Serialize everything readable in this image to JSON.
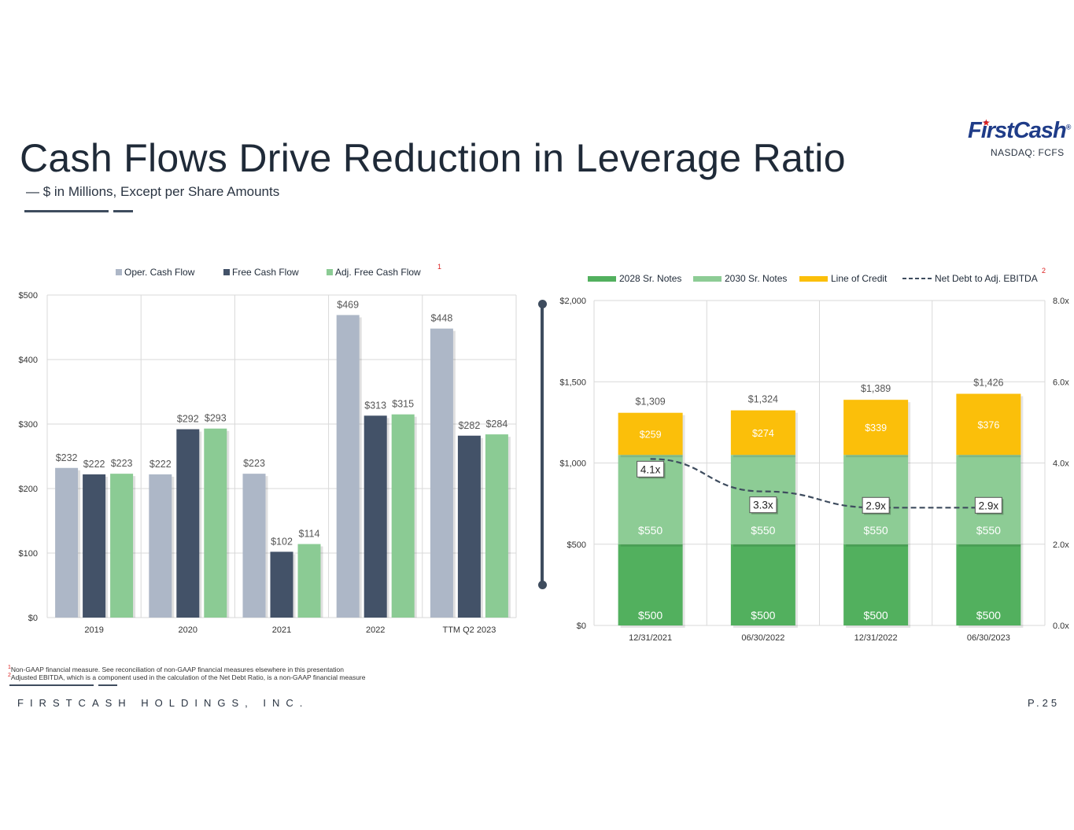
{
  "header": {
    "title": "Cash Flows Drive Reduction in Leverage Ratio",
    "subtitle": "— $ in Millions, Except per Share Amounts",
    "logo_text": "FirstCash",
    "logo_reg": "®",
    "ticker": "NASDAQ: FCFS"
  },
  "colors": {
    "oper": "#adb7c7",
    "free": "#435268",
    "adj": "#8bcb94",
    "notes2028": "#52b05e",
    "notes2030": "#8dcc95",
    "credit": "#fbbf0a",
    "ratio": "#3e4c5e",
    "footnote_marker": "#dd2222"
  },
  "chart_data": [
    {
      "type": "bar",
      "categories": [
        "2019",
        "2020",
        "2021",
        "2022",
        "TTM Q2 2023"
      ],
      "series": [
        {
          "name": "Oper. Cash Flow",
          "values": [
            232,
            222,
            223,
            469,
            448
          ],
          "labels": [
            "$232",
            "$222",
            "$223",
            "$469",
            "$448"
          ]
        },
        {
          "name": "Free Cash Flow",
          "values": [
            222,
            292,
            102,
            313,
            282
          ],
          "labels": [
            "$222",
            "$292",
            "$102",
            "$313",
            "$282"
          ]
        },
        {
          "name": "Adj. Free Cash Flow",
          "values": [
            223,
            293,
            114,
            315,
            284
          ],
          "labels": [
            "$223",
            "$293",
            "$114",
            "$315",
            "$284"
          ]
        }
      ],
      "legend_marker": "1",
      "ylim": [
        0,
        500
      ],
      "yticks": [
        "$0",
        "$100",
        "$200",
        "$300",
        "$400",
        "$500"
      ],
      "grid": true,
      "legend": "top"
    },
    {
      "type": "bar",
      "stacked": true,
      "categories": [
        "12/31/2021",
        "06/30/2022",
        "12/31/2022",
        "06/30/2023"
      ],
      "series": [
        {
          "name": "2028 Sr. Notes",
          "values": [
            500,
            500,
            500,
            500
          ],
          "labels": [
            "$500",
            "$500",
            "$500",
            "$500"
          ]
        },
        {
          "name": "2030 Sr. Notes",
          "values": [
            550,
            550,
            550,
            550
          ],
          "labels": [
            "$550",
            "$550",
            "$550",
            "$550"
          ]
        },
        {
          "name": "Line of Credit",
          "values": [
            259,
            274,
            339,
            376
          ],
          "labels": [
            "$259",
            "$274",
            "$339",
            "$376"
          ]
        }
      ],
      "totals": [
        "$1,309",
        "$1,324",
        "$1,389",
        "$1,426"
      ],
      "line_series": {
        "name": "Net Debt to Adj. EBITDA",
        "values": [
          4.1,
          3.3,
          2.9,
          2.9
        ],
        "labels": [
          "4.1x",
          "3.3x",
          "2.9x",
          "2.9x"
        ],
        "style": "dashed",
        "axis": "right"
      },
      "legend_marker": "2",
      "ylim": [
        0,
        2000
      ],
      "yticks": [
        "$0",
        "$500",
        "$1,000",
        "$1,500",
        "$2,000"
      ],
      "y2lim": [
        0,
        8
      ],
      "y2ticks": [
        "0.0x",
        "2.0x",
        "4.0x",
        "6.0x",
        "8.0x"
      ],
      "grid": true,
      "legend": "top"
    }
  ],
  "footer": {
    "note1_marker": "1",
    "note1": "Non-GAAP financial measure. See reconciliation of non-GAAP financial measures elsewhere in this presentation",
    "note2_marker": "2",
    "note2": "Adjusted EBITDA, which is a component used in the calculation of the Net Debt Ratio, is a non-GAAP financial measure",
    "company": "FIRSTCASH HOLDINGS, INC.",
    "page": "P.25"
  }
}
